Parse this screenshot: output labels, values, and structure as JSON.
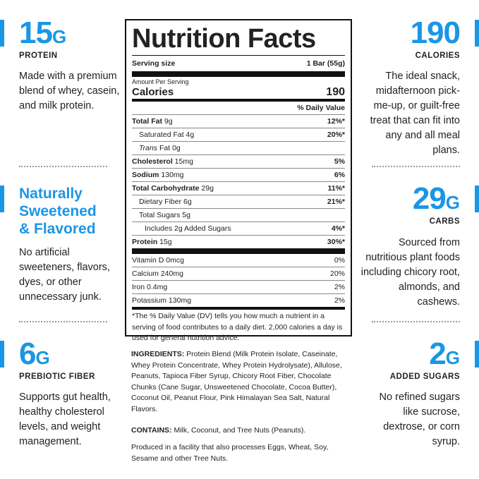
{
  "left": {
    "protein": {
      "value": "15",
      "unit": "G",
      "label": "PROTEIN",
      "desc": "Made with a premium blend of whey, casein, and milk protein."
    },
    "sweetened": {
      "title_lines": [
        "Naturally",
        "Sweetened",
        "& Flavored"
      ],
      "desc": "No artificial sweeteners, flavors, dyes, or other unnecessary junk."
    },
    "fiber": {
      "value": "6",
      "unit": "G",
      "label": "PREBIOTIC FIBER",
      "desc": "Supports gut health, healthy cholesterol levels, and weight management."
    }
  },
  "right": {
    "calories": {
      "value": "190",
      "label": "CALORIES",
      "desc": "The ideal snack, midafternoon pick-me-up, or guilt-free treat that can fit into any and all meal plans."
    },
    "carbs": {
      "value": "29",
      "unit": "G",
      "label": "CARBS",
      "desc": "Sourced from nutritious plant foods including chicory root, almonds, and cashews."
    },
    "sugars": {
      "value": "2",
      "unit": "G",
      "label": "ADDED SUGARS",
      "desc": "No refined sugars like sucrose, dextrose, or corn syrup."
    }
  },
  "nutrition": {
    "title": "Nutrition Facts",
    "serving_size_label": "Serving size",
    "serving_size_value": "1 Bar (55g)",
    "amount_per_serving": "Amount Per Serving",
    "calories_label": "Calories",
    "calories_value": "190",
    "dv_header": "% Daily Value",
    "rows": [
      {
        "label_bold": "Total Fat",
        "label": " 9g",
        "dv": "12%*",
        "indent": 0,
        "line": "thin"
      },
      {
        "label_bold": "",
        "label": "Saturated Fat 4g",
        "dv": "20%*",
        "indent": 1,
        "line": "thin"
      },
      {
        "label_italic": "Trans",
        "label": " Fat 0g",
        "dv": "",
        "indent": 1,
        "line": "thin"
      },
      {
        "label_bold": "Cholesterol",
        "label": " 15mg",
        "dv": "5%",
        "indent": 0,
        "line": "thin"
      },
      {
        "label_bold": "Sodium",
        "label": " 130mg",
        "dv": "6%",
        "indent": 0,
        "line": "thin"
      },
      {
        "label_bold": "Total Carbohydrate",
        "label": " 29g",
        "dv": "11%*",
        "indent": 0,
        "line": "thin"
      },
      {
        "label_bold": "",
        "label": "Dietary Fiber 6g",
        "dv": "21%*",
        "indent": 1,
        "line": "thin"
      },
      {
        "label_bold": "",
        "label": "Total Sugars 5g",
        "dv": "",
        "indent": 1,
        "line": "thin"
      },
      {
        "label_bold": "",
        "label": "Includes 2g Added Sugars",
        "dv": "4%*",
        "indent": 2,
        "line": "thin"
      },
      {
        "label_bold": "Protein",
        "label": " 15g",
        "dv": "30%*",
        "indent": 0,
        "line": "thin"
      }
    ],
    "vitamins": [
      {
        "label": "Vitamin D 0mcg",
        "dv": "0%"
      },
      {
        "label": "Calcium 240mg",
        "dv": "20%"
      },
      {
        "label": "Iron 0.4mg",
        "dv": "2%"
      },
      {
        "label": "Potassium 130mg",
        "dv": "2%"
      }
    ],
    "footnote": "*The % Daily Value (DV) tells you how much a nutrient in a serving of food contributes to a daily diet. 2,000 calories a day is used for general nutrition advice."
  },
  "ingredients": {
    "label": "INGREDIENTS:",
    "text": " Protein Blend (Milk Protein Isolate, Caseinate, Whey Protein Concentrate, Whey Protein Hydrolysate), Allulose, Peanuts, Tapioca Fiber Syrup, Chicory Root Fiber, Chocolate Chunks (Cane Sugar, Unsweetened Chocolate, Cocoa Butter), Coconut Oil, Peanut Flour, Pink Himalayan Sea Salt, Natural Flavors.",
    "contains_label": "CONTAINS:",
    "contains_text": " Milk, Coconut, and Tree Nuts (Peanuts).",
    "facility": "Produced in a facility that also processes Eggs, Wheat, Soy, Sesame and other Tree Nuts."
  },
  "colors": {
    "accent": "#1a96e6"
  }
}
